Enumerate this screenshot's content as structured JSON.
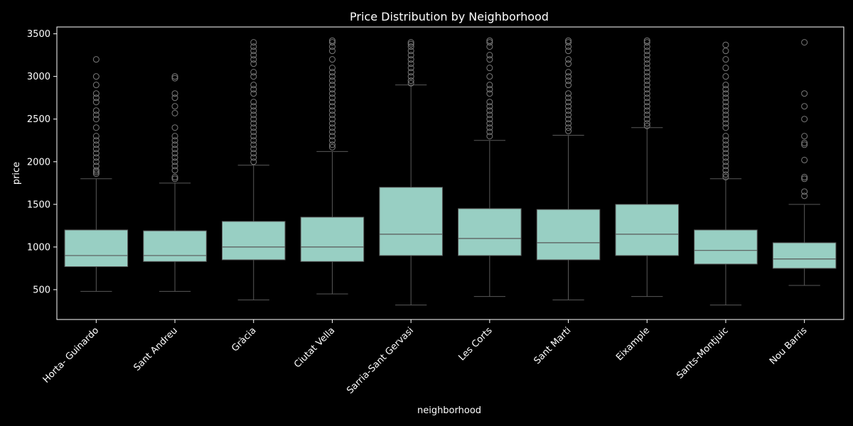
{
  "chart_data": {
    "type": "box",
    "title": "Price Distribution by Neighborhood",
    "xlabel": "neighborhood",
    "ylabel": "price",
    "ylim": [
      150,
      3580
    ],
    "yticks": [
      500,
      1000,
      1500,
      2000,
      2500,
      3000,
      3500
    ],
    "grid": false,
    "colors": {
      "background": "#000000",
      "box_fill": "#98cfc3",
      "box_line": "#595959",
      "outlier_edge": "#7a7a7a",
      "axis": "#ffffff",
      "text": "#ffffff"
    },
    "categories": [
      "Horta- Guinardo",
      "Sant Andreu",
      "Gràcia",
      "Ciutat Vella",
      "Sarria-Sant Gervasi",
      "Les Corts",
      "Sant Marti",
      "Eixample",
      "Sants-Montjuic",
      "Nou Barris"
    ],
    "boxes": [
      {
        "whisker_low": 480,
        "q1": 770,
        "median": 900,
        "q3": 1200,
        "whisker_high": 1800,
        "outliers": [
          1860,
          1880,
          1900,
          1950,
          2000,
          2050,
          2100,
          2150,
          2200,
          2250,
          2300,
          2400,
          2500,
          2550,
          2600,
          2700,
          2750,
          2800,
          2900,
          3000,
          3200
        ]
      },
      {
        "whisker_low": 480,
        "q1": 830,
        "median": 900,
        "q3": 1190,
        "whisker_high": 1750,
        "outliers": [
          1800,
          1820,
          1900,
          1950,
          2000,
          2050,
          2100,
          2150,
          2200,
          2250,
          2300,
          2400,
          2570,
          2650,
          2750,
          2800,
          2980,
          3000
        ]
      },
      {
        "whisker_low": 380,
        "q1": 850,
        "median": 1000,
        "q3": 1300,
        "whisker_high": 1960,
        "outliers": [
          2000,
          2050,
          2100,
          2150,
          2200,
          2250,
          2300,
          2350,
          2400,
          2450,
          2500,
          2550,
          2600,
          2650,
          2700,
          2800,
          2850,
          2900,
          3000,
          3050,
          3150,
          3200,
          3250,
          3300,
          3350,
          3400
        ]
      },
      {
        "whisker_low": 450,
        "q1": 830,
        "median": 1000,
        "q3": 1350,
        "whisker_high": 2120,
        "outliers": [
          2170,
          2200,
          2250,
          2300,
          2350,
          2400,
          2450,
          2500,
          2550,
          2600,
          2650,
          2700,
          2750,
          2800,
          2850,
          2900,
          2950,
          3000,
          3050,
          3100,
          3200,
          3300,
          3350,
          3400,
          3420
        ]
      },
      {
        "whisker_low": 320,
        "q1": 900,
        "median": 1150,
        "q3": 1700,
        "whisker_high": 2900,
        "outliers": [
          2920,
          2950,
          3000,
          3050,
          3100,
          3150,
          3200,
          3250,
          3300,
          3350,
          3380,
          3400
        ]
      },
      {
        "whisker_low": 420,
        "q1": 900,
        "median": 1100,
        "q3": 1450,
        "whisker_high": 2250,
        "outliers": [
          2300,
          2350,
          2400,
          2450,
          2500,
          2550,
          2600,
          2650,
          2700,
          2800,
          2850,
          2900,
          3000,
          3100,
          3200,
          3250,
          3350,
          3400,
          3420
        ]
      },
      {
        "whisker_low": 380,
        "q1": 850,
        "median": 1050,
        "q3": 1440,
        "whisker_high": 2310,
        "outliers": [
          2360,
          2400,
          2450,
          2500,
          2550,
          2600,
          2650,
          2700,
          2750,
          2800,
          2900,
          2950,
          3000,
          3050,
          3150,
          3200,
          3300,
          3350,
          3400,
          3420
        ]
      },
      {
        "whisker_low": 420,
        "q1": 900,
        "median": 1150,
        "q3": 1500,
        "whisker_high": 2400,
        "outliers": [
          2420,
          2450,
          2500,
          2550,
          2600,
          2650,
          2700,
          2750,
          2800,
          2850,
          2900,
          2950,
          3000,
          3050,
          3100,
          3150,
          3200,
          3250,
          3300,
          3350,
          3400,
          3420
        ]
      },
      {
        "whisker_low": 320,
        "q1": 800,
        "median": 960,
        "q3": 1200,
        "whisker_high": 1800,
        "outliers": [
          1820,
          1850,
          1900,
          1950,
          2000,
          2050,
          2100,
          2150,
          2200,
          2250,
          2300,
          2400,
          2450,
          2500,
          2550,
          2600,
          2650,
          2700,
          2750,
          2800,
          2850,
          2900,
          3000,
          3100,
          3200,
          3300,
          3370
        ]
      },
      {
        "whisker_low": 550,
        "q1": 750,
        "median": 860,
        "q3": 1050,
        "whisker_high": 1500,
        "outliers": [
          1600,
          1650,
          1800,
          1820,
          2020,
          2200,
          2220,
          2300,
          2500,
          2650,
          2800,
          3400
        ]
      }
    ]
  }
}
